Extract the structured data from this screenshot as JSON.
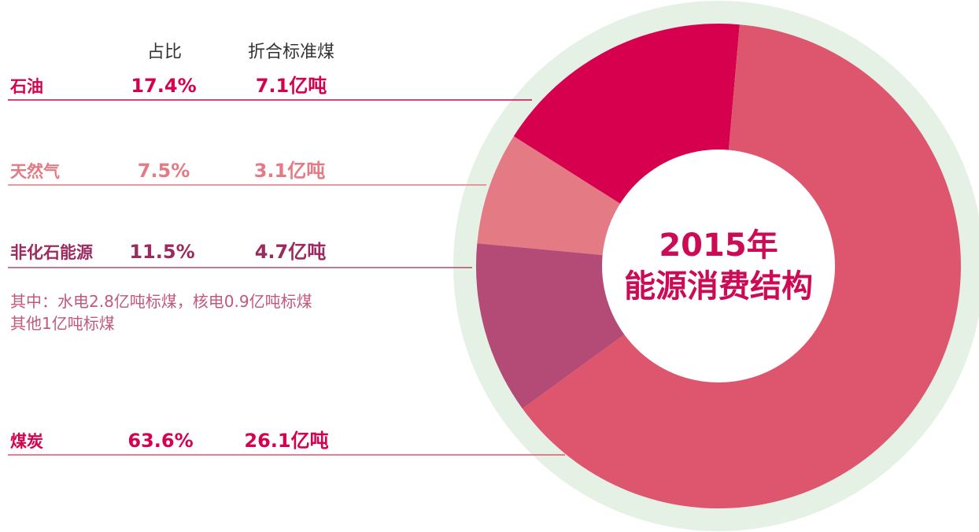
{
  "chart_data": {
    "type": "pie",
    "title": "2015年",
    "subtitle": "能源消费结构",
    "column_headers": [
      "占比",
      "折合标准煤"
    ],
    "series": [
      {
        "name": "石油",
        "share": 17.4,
        "share_label": "17.4%",
        "coal_equivalent": "7.1亿吨",
        "color": "#d6004f"
      },
      {
        "name": "天然气",
        "share": 7.5,
        "share_label": "7.5%",
        "coal_equivalent": "3.1亿吨",
        "color": "#e37a84"
      },
      {
        "name": "非化石能源",
        "share": 11.5,
        "share_label": "11.5%",
        "coal_equivalent": "4.7亿吨",
        "color": "#b44a76"
      },
      {
        "name": "煤炭",
        "share": 63.6,
        "share_label": "63.6%",
        "coal_equivalent": "26.1亿吨",
        "color": "#de556e"
      }
    ],
    "note_lines": [
      "其中：水电2.8亿吨标煤，核电0.9亿吨标煤",
      "其他1亿吨标煤"
    ],
    "label_colors": [
      "#d6004f",
      "#e37a84",
      "#9b2a5e",
      "#d6004f"
    ],
    "ring_color": "#e4f1e4"
  }
}
